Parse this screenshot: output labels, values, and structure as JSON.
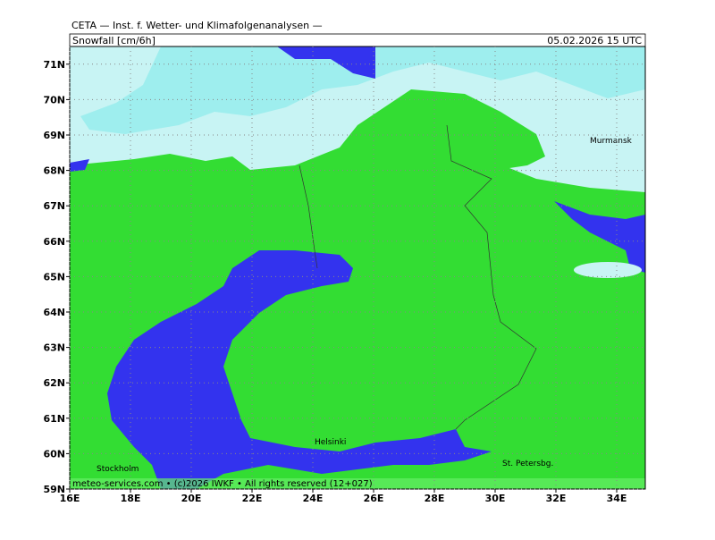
{
  "header": "CETA — Inst. f. Wetter- und Klimafolgenanalysen —",
  "title": "Snowfall [cm/6h]",
  "valid_time": "05.02.2026 15 UTC",
  "footer": "meteo-services.com • (c)2026 IWKF • All rights reserved (12+027)",
  "lat_ticks": [
    {
      "value": 71,
      "label": "71N"
    },
    {
      "value": 70,
      "label": "70N"
    },
    {
      "value": 69,
      "label": "69N"
    },
    {
      "value": 68,
      "label": "68N"
    },
    {
      "value": 67,
      "label": "67N"
    },
    {
      "value": 66,
      "label": "66N"
    },
    {
      "value": 65,
      "label": "65N"
    },
    {
      "value": 64,
      "label": "64N"
    },
    {
      "value": 63,
      "label": "63N"
    },
    {
      "value": 62,
      "label": "62N"
    },
    {
      "value": 61,
      "label": "61N"
    },
    {
      "value": 60,
      "label": "60N"
    },
    {
      "value": 59,
      "label": "59N"
    }
  ],
  "lon_ticks": [
    {
      "value": 16,
      "label": "16E"
    },
    {
      "value": 18,
      "label": "18E"
    },
    {
      "value": 20,
      "label": "20E"
    },
    {
      "value": 22,
      "label": "22E"
    },
    {
      "value": 24,
      "label": "24E"
    },
    {
      "value": 26,
      "label": "26E"
    },
    {
      "value": 28,
      "label": "28E"
    },
    {
      "value": 30,
      "label": "30E"
    },
    {
      "value": 32,
      "label": "32E"
    },
    {
      "value": 34,
      "label": "34E"
    }
  ],
  "cities": [
    "Murmansk",
    "Helsinki",
    "Stockholm",
    "St. Petersbg."
  ]
}
